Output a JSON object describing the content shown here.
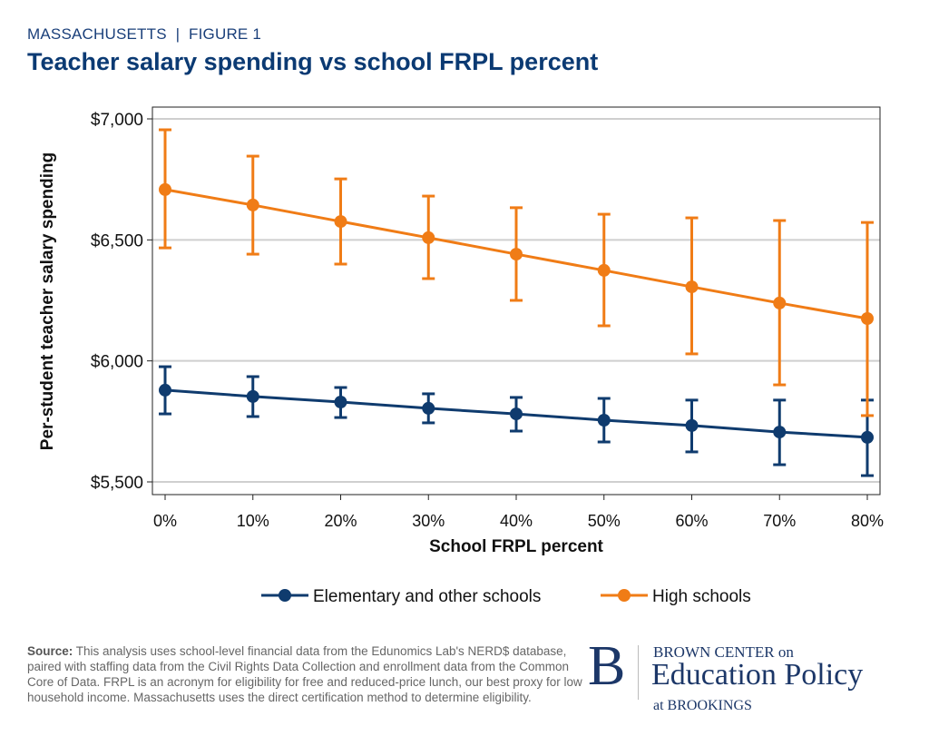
{
  "header": {
    "kicker": "MASSACHUSETTS  |  FIGURE 1",
    "title": "Teacher salary spending vs school FRPL percent"
  },
  "chart_data": {
    "type": "line",
    "title": "Teacher salary spending vs school FRPL percent",
    "xlabel": "School FRPL percent",
    "ylabel": "Per-student teacher salary spending",
    "x": [
      0,
      10,
      20,
      30,
      40,
      50,
      60,
      70,
      80
    ],
    "x_tick_labels": [
      "0%",
      "10%",
      "20%",
      "30%",
      "40%",
      "50%",
      "60%",
      "70%",
      "80%"
    ],
    "y_ticks": [
      5500,
      6000,
      6500,
      7000
    ],
    "y_tick_labels": [
      "$5,500",
      "$6,000",
      "$6,500",
      "$7,000"
    ],
    "ylim": [
      5450,
      7050
    ],
    "xlim": [
      -2,
      82
    ],
    "grid": true,
    "legend_position": "bottom",
    "series": [
      {
        "name": "Elementary and other schools",
        "color": "#0f3b6e",
        "values": [
          5879,
          5853,
          5830,
          5804,
          5781,
          5755,
          5733,
          5706,
          5684
        ],
        "lower": [
          5781,
          5770,
          5766,
          5744,
          5710,
          5665,
          5624,
          5571,
          5526
        ],
        "upper": [
          5976,
          5935,
          5890,
          5864,
          5849,
          5845,
          5838,
          5838,
          5838
        ]
      },
      {
        "name": "High schools",
        "color": "#f07c16",
        "values": [
          6708,
          6644,
          6576,
          6509,
          6441,
          6374,
          6306,
          6239,
          6175
        ],
        "lower": [
          6467,
          6441,
          6400,
          6340,
          6250,
          6145,
          6029,
          5901,
          5774
        ],
        "upper": [
          6955,
          6846,
          6752,
          6681,
          6633,
          6606,
          6591,
          6580,
          6572
        ]
      }
    ]
  },
  "footer": {
    "source_label": "Source:",
    "source_text": " This analysis uses school-level financial data from the Edunomics Lab's NERD$ database, paired with staffing data from the Civil Rights Data Collection and enrollment data from the Common Core of Data. FRPL is an acronym for eligibility for free and reduced-price lunch, our best proxy for low household income. Massachusetts uses the direct certification method to determine eligibility.",
    "logo": {
      "letter": "B",
      "line1": "BROWN CENTER on",
      "line2": "Education Policy",
      "line3": "at BROOKINGS"
    }
  }
}
